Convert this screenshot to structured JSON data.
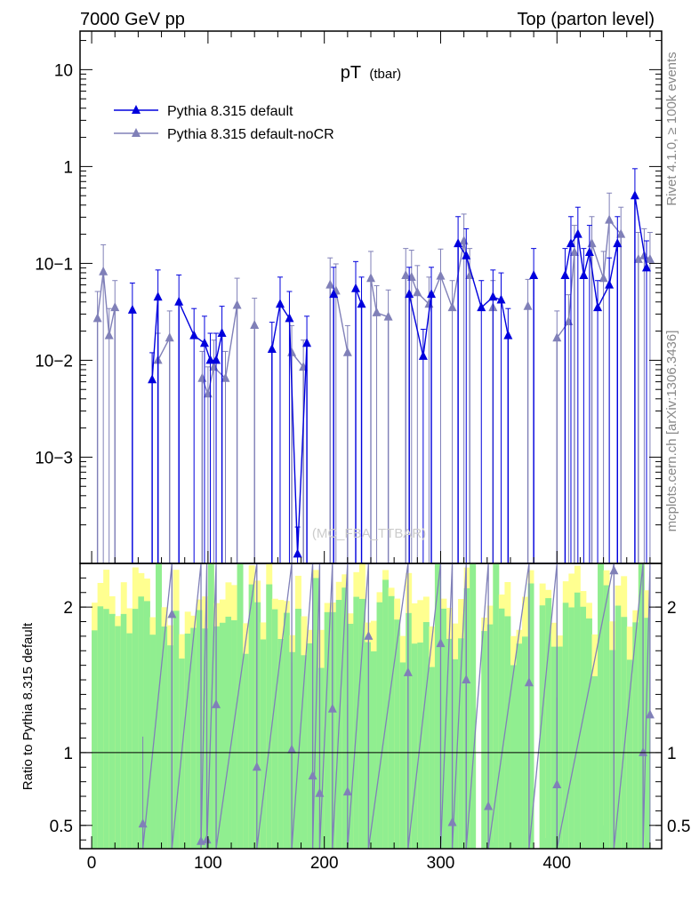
{
  "header": {
    "left": "7000 GeV pp",
    "right": "Top (parton level)"
  },
  "side_labels": {
    "rivet": "Rivet 4.1.0, ≥ 100k events",
    "mcplots": "mcplots.cern.ch [arXiv:1306.3436]"
  },
  "watermark": "(MC_FBA_TTBAR)",
  "colors": {
    "default": "#0000dd",
    "noCR": "#8080b8",
    "band_green": "#90ee90",
    "band_yellow": "#ffff90"
  },
  "chart_data": [
    {
      "type": "line",
      "title": "pT",
      "title_sub": "(tbar)",
      "yscale": "log",
      "xlim": [
        -10,
        490
      ],
      "ylim": [
        8e-05,
        25
      ],
      "yticks": [
        0.001,
        0.01,
        0.1,
        1,
        10
      ],
      "ytick_labels": [
        "10−3",
        "10−2",
        "10−1",
        "1",
        "10"
      ],
      "legend_position": "top-left",
      "series": [
        {
          "name": "Pythia 8.315 default",
          "x": [
            35,
            52,
            57,
            75,
            88,
            97,
            102,
            107,
            112,
            155,
            162,
            170,
            177,
            185,
            208,
            227,
            232,
            273,
            285,
            292,
            315,
            322,
            335,
            345,
            352,
            358,
            380,
            407,
            412,
            418,
            423,
            428,
            435,
            445,
            452,
            467,
            477
          ],
          "y": [
            0.033,
            0.0063,
            0.045,
            0.04,
            0.018,
            0.015,
            0.01,
            0.01,
            0.019,
            0.013,
            0.038,
            0.027,
            0.0001,
            0.015,
            0.048,
            0.055,
            0.038,
            0.048,
            0.011,
            0.048,
            0.16,
            0.12,
            0.035,
            0.045,
            0.042,
            0.018,
            0.075,
            0.075,
            0.16,
            0.2,
            0.075,
            0.13,
            0.035,
            0.06,
            0.16,
            0.5,
            0.09
          ]
        },
        {
          "name": "Pythia 8.315 default-noCR",
          "x": [
            5,
            10,
            15,
            20,
            57,
            67,
            95,
            100,
            105,
            115,
            125,
            140,
            172,
            182,
            205,
            210,
            220,
            240,
            245,
            255,
            270,
            275,
            280,
            290,
            300,
            310,
            320,
            325,
            345,
            375,
            400,
            410,
            415,
            430,
            440,
            445,
            455,
            470,
            475,
            480
          ],
          "y": [
            0.027,
            0.082,
            0.018,
            0.035,
            0.01,
            0.017,
            0.0065,
            0.0045,
            0.0085,
            0.0065,
            0.037,
            0.023,
            0.012,
            0.0085,
            0.06,
            0.052,
            0.012,
            0.07,
            0.031,
            0.028,
            0.075,
            0.072,
            0.05,
            0.038,
            0.074,
            0.035,
            0.17,
            0.075,
            0.035,
            0.036,
            0.017,
            0.025,
            0.13,
            0.16,
            0.07,
            0.28,
            0.2,
            0.11,
            0.12,
            0.11
          ]
        }
      ]
    },
    {
      "type": "line",
      "ylabel": "Ratio to Pythia 8.315 default",
      "xlim": [
        -10,
        490
      ],
      "ylim": [
        0.34,
        2.3
      ],
      "yticks": [
        0.5,
        1,
        2
      ],
      "ytick_labels": [
        "0.5",
        "1",
        "2"
      ],
      "xticks": [
        0,
        100,
        200,
        300,
        400
      ],
      "xtick_labels": [
        "0",
        "100",
        "200",
        "300",
        "400"
      ],
      "reference_line": 1,
      "series": [
        {
          "name": "Pythia 8.315 default-noCR",
          "x": [
            44,
            69,
            94,
            99,
            107,
            142,
            172,
            190,
            196,
            207,
            220,
            238,
            272,
            300,
            310,
            322,
            341,
            376,
            400,
            449,
            474,
            480
          ],
          "y": [
            0.51,
            1.95,
            0.39,
            0.4,
            1.33,
            0.9,
            1.02,
            0.84,
            0.72,
            1.3,
            0.73,
            1.8,
            1.55,
            1.75,
            0.52,
            1.5,
            0.63,
            1.48,
            0.78,
            2.25,
            1.0,
            1.26
          ]
        }
      ]
    }
  ]
}
